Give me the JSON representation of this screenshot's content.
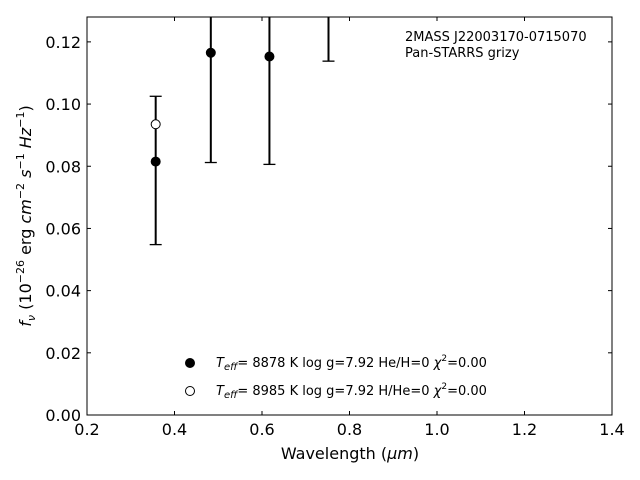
{
  "chart_data": {
    "type": "scatter",
    "xlabel_main": "Wavelength (",
    "xlabel_unit": "μm",
    "xlabel_close": ")",
    "ylabel_parts": {
      "f": "f",
      "nu": "ν",
      "open": " (10",
      "exp_neg26": "−26",
      "erg": " erg ",
      "cm": "cm",
      "exp_neg2": "−2",
      "s": "s",
      "exp_neg1a": "−1",
      "hz": "Hz",
      "exp_neg1b": "−1",
      "close": ")"
    },
    "xlim": [
      0.2,
      1.4
    ],
    "ylim": [
      0.0,
      0.128
    ],
    "xticks": [
      0.2,
      0.4,
      0.6,
      0.8,
      1.0,
      1.2,
      1.4
    ],
    "xtick_labels": [
      "0.2",
      "0.4",
      "0.6",
      "0.8",
      "1.0",
      "1.2",
      "1.4"
    ],
    "yticks": [
      0.0,
      0.02,
      0.04,
      0.06,
      0.08,
      0.1,
      0.12
    ],
    "ytick_labels": [
      "0.00",
      "0.02",
      "0.04",
      "0.06",
      "0.08",
      "0.10",
      "0.12"
    ],
    "annotation": [
      "2MASS J22003170-0715070",
      "Pan-STARRS grizy"
    ],
    "observed": {
      "x": [
        0.357,
        0.483,
        0.617,
        0.752
      ],
      "y": [
        0.0815,
        0.1165,
        0.1153,
        null
      ],
      "yerr_low": [
        0.0548,
        0.0812,
        0.0806,
        0.1138
      ],
      "yerr_high": [
        0.1025,
        0.128,
        0.128,
        0.128
      ],
      "cap_low": [
        true,
        true,
        true,
        true
      ],
      "cap_high": [
        true,
        false,
        false,
        false
      ]
    },
    "series": [
      {
        "marker": "filled",
        "x": [
          0.357,
          0.483,
          0.617
        ],
        "y": [
          0.0815,
          0.1165,
          0.1153
        ],
        "legend": {
          "teff_T": "T",
          "teff_sub": "eff",
          "teff_val": "=  8878 K  log g=7.92  He/H=0  ",
          "chi": "χ",
          "chi_sup": "2",
          "chi_val": "=0.00"
        }
      },
      {
        "marker": "open",
        "x": [
          0.357
        ],
        "y": [
          0.0935
        ],
        "legend": {
          "teff_T": "T",
          "teff_sub": "eff",
          "teff_val": "=  8985 K  log g=7.92  H/He=0  ",
          "chi": "χ",
          "chi_sup": "2",
          "chi_val": "=0.00"
        }
      }
    ],
    "legend_position": "lower-center",
    "grid": false
  }
}
